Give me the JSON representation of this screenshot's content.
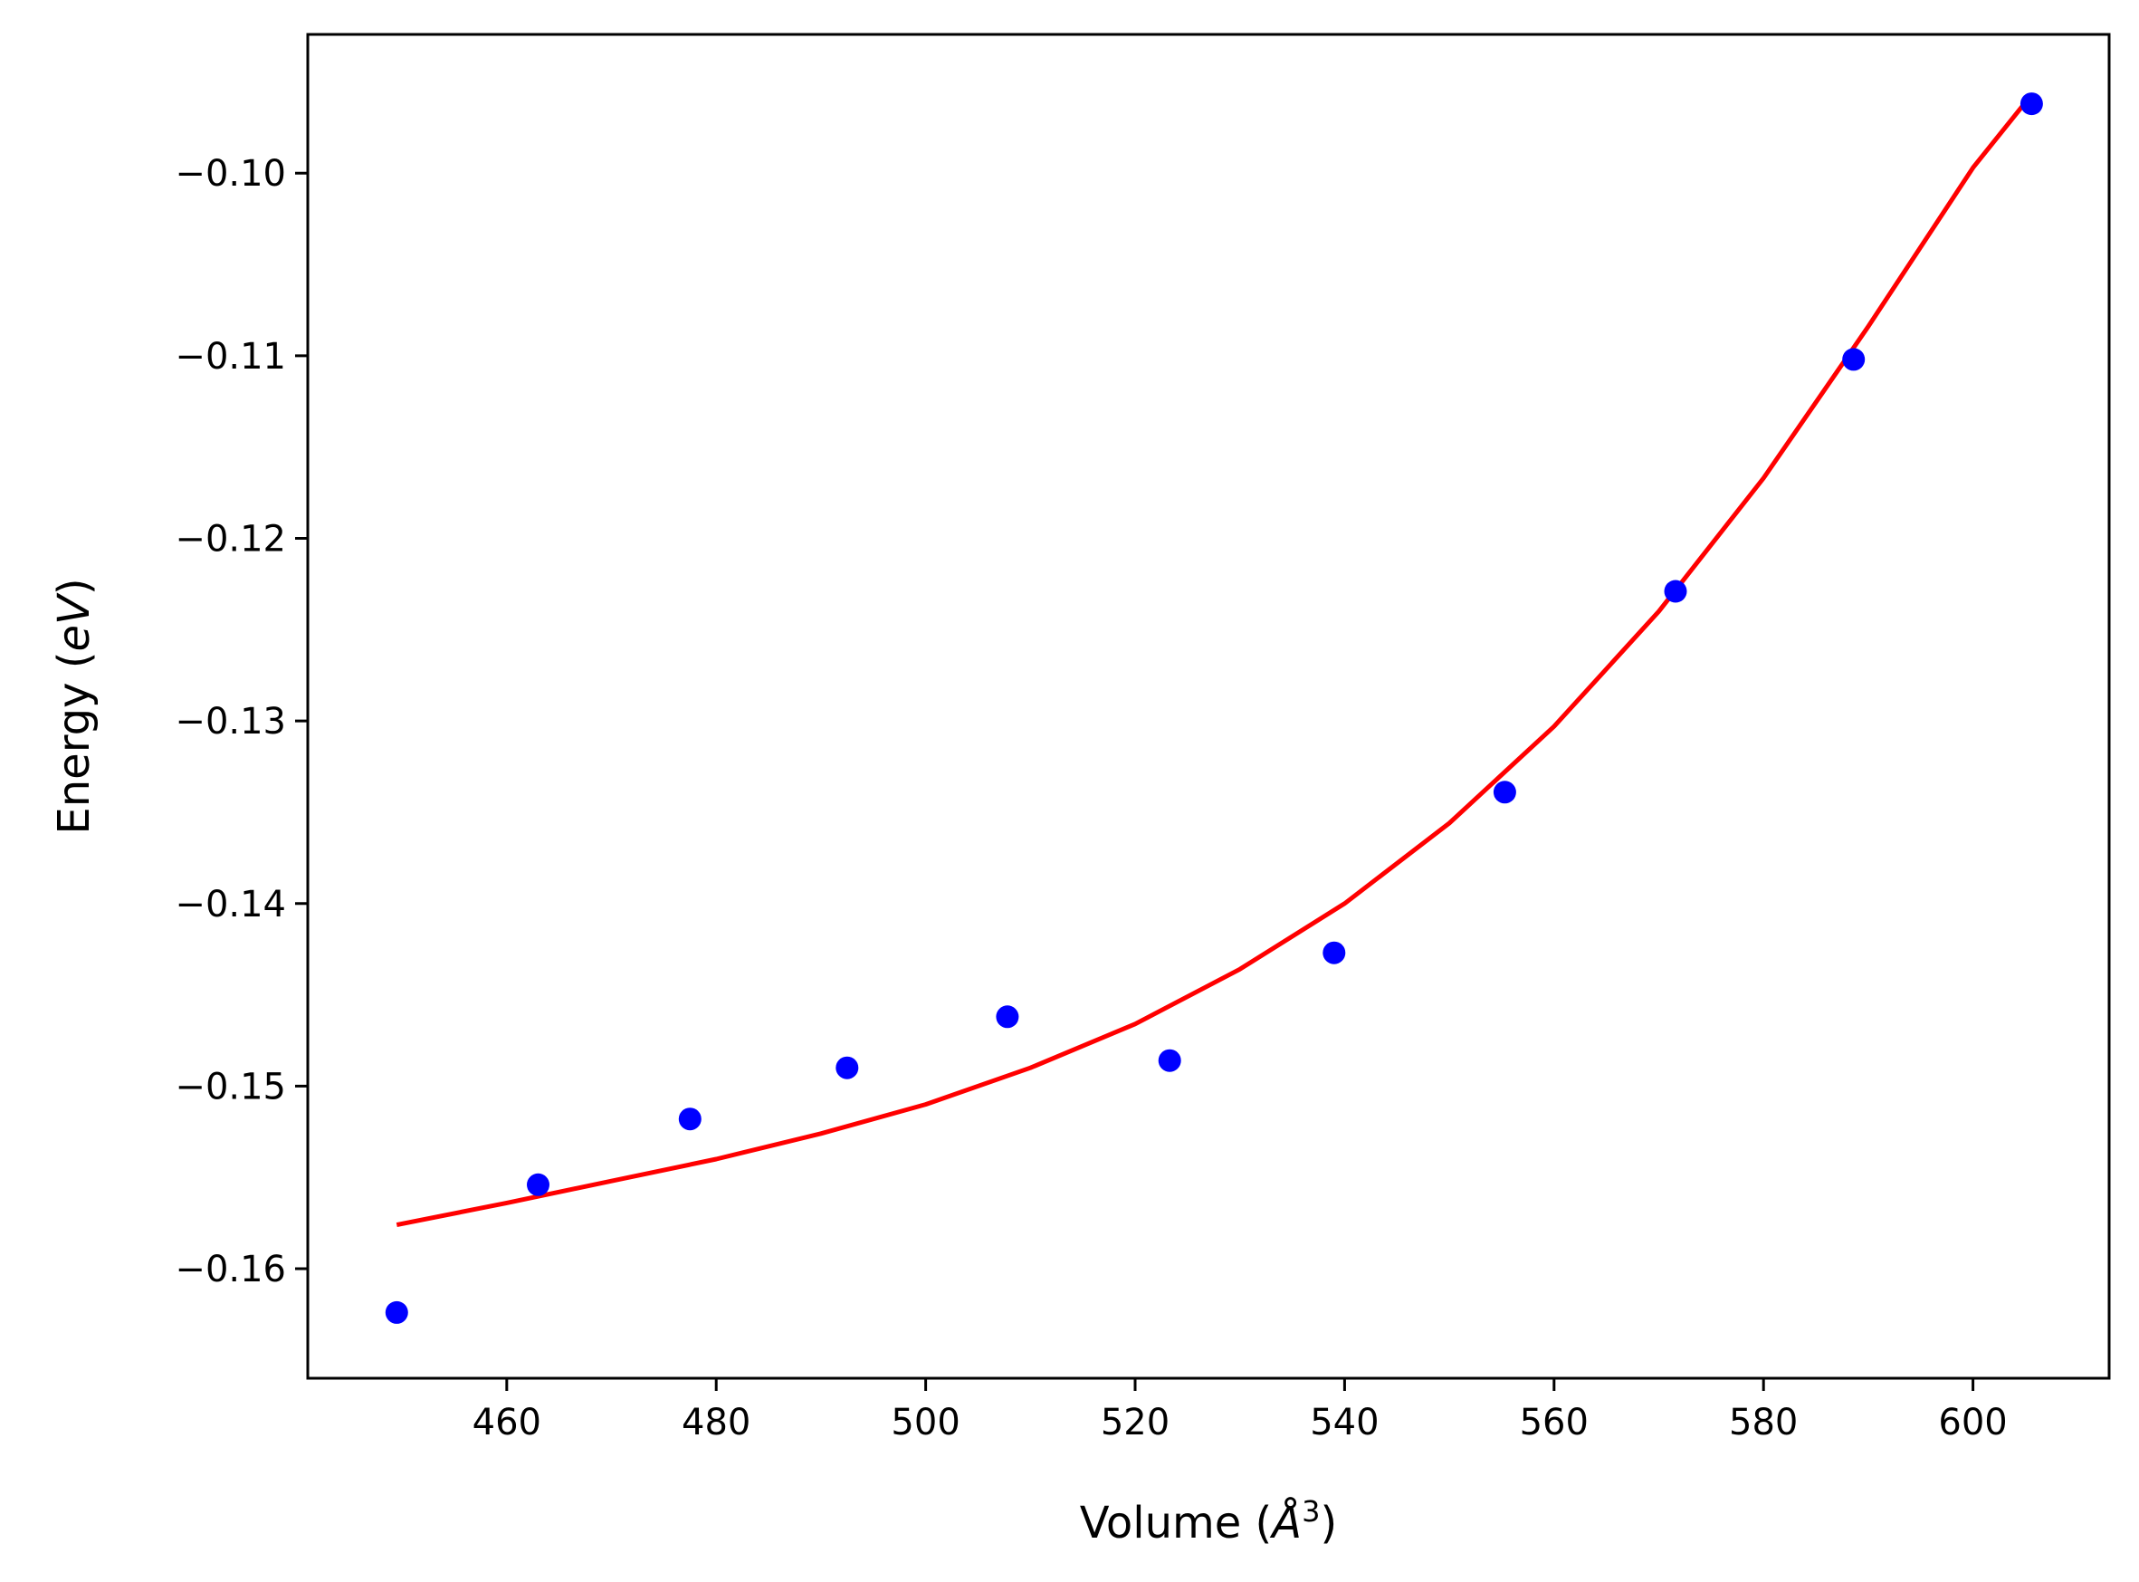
{
  "chart_data": {
    "type": "scatter",
    "title": "",
    "xlabel": "Volume (Å³)",
    "ylabel": "Energy (eV)",
    "xlabel_parts": {
      "prefix": "Volume (",
      "symbol": "Å",
      "superscript": "3",
      "suffix": ")"
    },
    "ylabel_parts": {
      "prefix": "Energy (",
      "italic": "eV",
      "suffix": ")"
    },
    "xlim": [
      441,
      613
    ],
    "ylim": [
      -0.166,
      -0.0924
    ],
    "xticks": [
      460,
      480,
      500,
      520,
      540,
      560,
      580,
      600
    ],
    "yticks": [
      -0.16,
      -0.15,
      -0.14,
      -0.13,
      -0.12,
      -0.11,
      -0.1
    ],
    "xtick_labels": [
      "460",
      "480",
      "500",
      "520",
      "540",
      "560",
      "580",
      "600"
    ],
    "ytick_labels": [
      "−0.16",
      "−0.15",
      "−0.14",
      "−0.13",
      "−0.12",
      "−0.11",
      "−0.10"
    ],
    "grid": false,
    "legend": "none",
    "series": [
      {
        "kind": "points",
        "color": "#0000ff",
        "x": [
          449.5,
          463.0,
          477.5,
          492.5,
          507.8,
          523.3,
          539.0,
          555.3,
          571.6,
          588.6,
          605.6
        ],
        "y": [
          -0.1624,
          -0.1554,
          -0.1518,
          -0.149,
          -0.1462,
          -0.1486,
          -0.1427,
          -0.1339,
          -0.1229,
          -0.1102,
          -0.0962
        ]
      },
      {
        "kind": "fit-line",
        "color": "#ff0000",
        "x": [
          449.5,
          460,
          470,
          480,
          490,
          500,
          510,
          520,
          530,
          540,
          550,
          560,
          570,
          580,
          590,
          600,
          605.6
        ],
        "y": [
          -0.1576,
          -0.1564,
          -0.1552,
          -0.154,
          -0.1526,
          -0.151,
          -0.149,
          -0.1466,
          -0.1436,
          -0.14,
          -0.1356,
          -0.1303,
          -0.124,
          -0.1167,
          -0.1084,
          -0.0997,
          -0.0957
        ]
      }
    ]
  }
}
